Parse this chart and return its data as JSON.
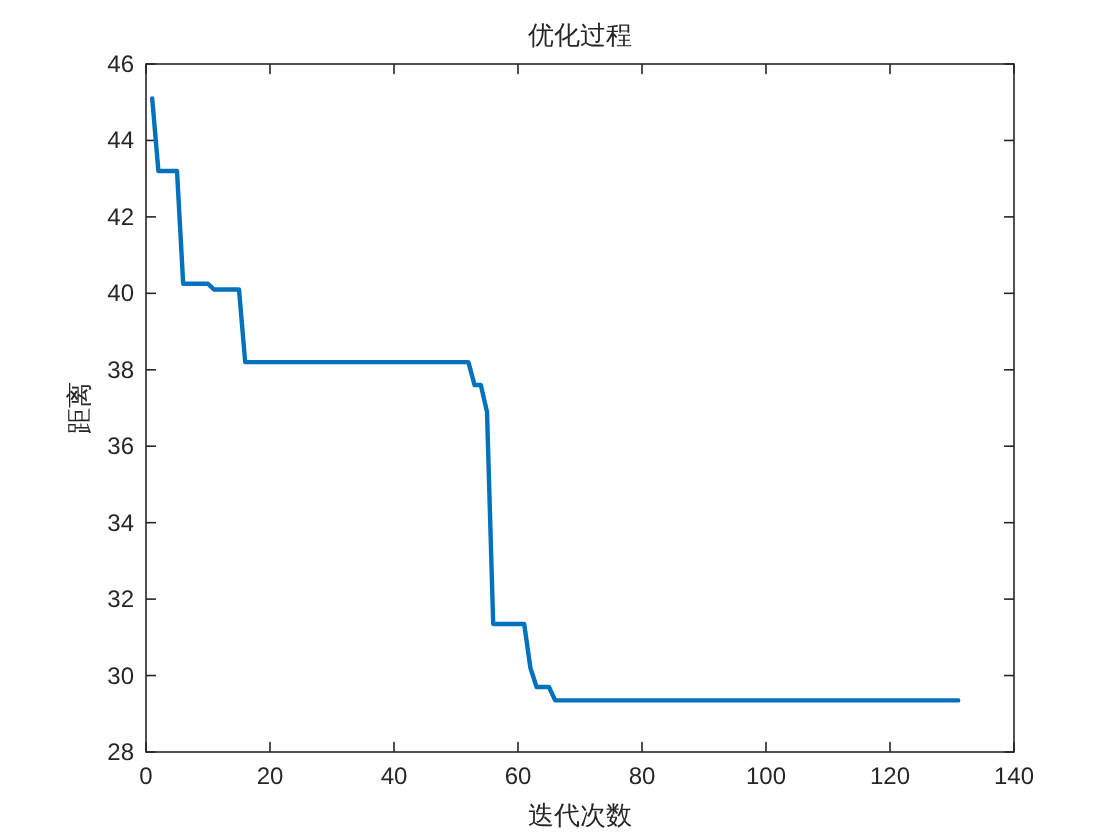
{
  "chart_data": {
    "type": "line",
    "title": "优化过程",
    "xlabel": "迭代次数",
    "ylabel": "距离",
    "x": [
      1,
      2,
      5,
      6,
      10,
      11,
      15,
      16,
      52,
      53,
      54,
      55,
      56,
      61,
      62,
      63,
      65,
      66,
      131
    ],
    "series": [
      {
        "color": "#0072bd",
        "values": [
          45.1,
          43.2,
          43.2,
          40.25,
          40.25,
          40.1,
          40.1,
          38.2,
          38.2,
          37.6,
          37.6,
          36.9,
          31.35,
          31.35,
          30.2,
          29.7,
          29.7,
          29.35,
          29.35
        ]
      }
    ],
    "xlim": [
      0,
      140
    ],
    "ylim": [
      28,
      46
    ],
    "xticks": [
      0,
      20,
      40,
      60,
      80,
      100,
      120,
      140
    ],
    "yticks": [
      28,
      30,
      32,
      34,
      36,
      38,
      40,
      42,
      44,
      46
    ],
    "grid": false,
    "marker": "none",
    "line_style": "solid"
  }
}
